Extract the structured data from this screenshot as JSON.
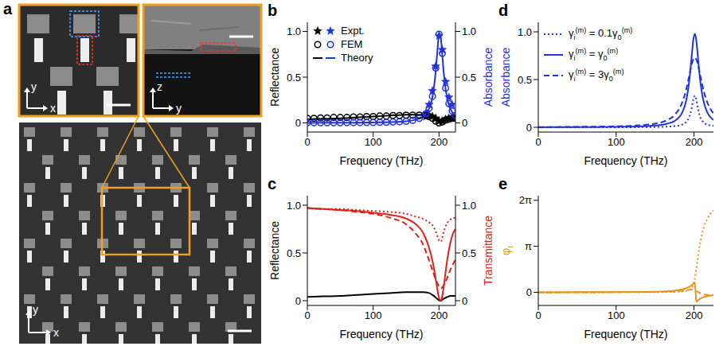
{
  "image_panel": {
    "panel": "a",
    "main": {
      "axes": [
        "x",
        "y"
      ]
    },
    "insets": [
      {
        "axes": [
          "x",
          "y"
        ]
      },
      {
        "axes": [
          "y",
          "z"
        ]
      }
    ]
  },
  "chart_data": [
    {
      "panel": "b",
      "type": "line",
      "x_label": "Frequency (THz)",
      "y_label": "Reflectance",
      "y2_label": "Absorbance",
      "xlim": [
        0,
        225
      ],
      "xticks": [
        0,
        100,
        200
      ],
      "ylim": [
        -0.1,
        1.1
      ],
      "yticks": [
        0,
        0.5,
        {
          "value": 1,
          "label": "1.0"
        }
      ],
      "y2lim": [
        -0.1,
        1.1
      ],
      "y2ticks": [
        0,
        0.5,
        {
          "value": 1,
          "label": "1.0"
        }
      ],
      "legend": "top-left",
      "series": [
        {
          "name": "Expt.",
          "type": "scatter",
          "marker": "star",
          "color": "#000000",
          "x": [
            180,
            185,
            190,
            195,
            200,
            205,
            210,
            215,
            220
          ],
          "values": [
            0.07,
            0.08,
            0.07,
            0.05,
            0.02,
            0.02,
            0.04,
            0.05,
            0.05
          ]
        },
        {
          "name": "Expt.",
          "type": "scatter",
          "marker": "star",
          "color": "#2233dd",
          "axis": "y2",
          "x": [
            180,
            185,
            190,
            195,
            200,
            205,
            210,
            215,
            220
          ],
          "values": [
            0.1,
            0.2,
            0.35,
            0.62,
            0.95,
            0.8,
            0.45,
            0.28,
            0.2
          ]
        },
        {
          "name": "FEM",
          "type": "scatter",
          "marker": "circle",
          "color": "#000000",
          "x": [
            0,
            10,
            20,
            30,
            40,
            50,
            60,
            70,
            80,
            90,
            100,
            110,
            120,
            130,
            140,
            150,
            160,
            170,
            180,
            185,
            190,
            195,
            200,
            205,
            210,
            215,
            220,
            225
          ],
          "values": [
            0.05,
            0.05,
            0.055,
            0.055,
            0.06,
            0.06,
            0.06,
            0.065,
            0.065,
            0.07,
            0.07,
            0.075,
            0.075,
            0.08,
            0.08,
            0.085,
            0.085,
            0.085,
            0.08,
            0.07,
            0.05,
            0.02,
            0,
            0.01,
            0.03,
            0.04,
            0.05,
            0.05
          ]
        },
        {
          "name": "FEM",
          "type": "scatter",
          "marker": "circle",
          "color": "#2233dd",
          "axis": "y2",
          "x": [
            0,
            10,
            20,
            30,
            40,
            50,
            60,
            70,
            80,
            90,
            100,
            110,
            120,
            130,
            140,
            150,
            160,
            170,
            180,
            185,
            190,
            195,
            200,
            205,
            210,
            215,
            220,
            225
          ],
          "values": [
            0.002,
            0.002,
            0.002,
            0.002,
            0.002,
            0.002,
            0.003,
            0.003,
            0.003,
            0.004,
            0.005,
            0.006,
            0.007,
            0.01,
            0.013,
            0.018,
            0.028,
            0.05,
            0.1,
            0.16,
            0.29,
            0.6,
            0.97,
            0.76,
            0.38,
            0.21,
            0.13,
            0.08
          ]
        },
        {
          "name": "Theory",
          "type": "line",
          "line_style": "solid",
          "color": "#000000",
          "x": [
            0,
            25,
            50,
            75,
            100,
            125,
            150,
            165,
            175,
            185,
            190,
            194,
            197,
            199,
            201,
            203,
            205,
            207,
            210,
            213,
            217,
            221,
            225
          ],
          "values": [
            0.04,
            0.045,
            0.05,
            0.06,
            0.07,
            0.08,
            0.09,
            0.09,
            0.09,
            0.08,
            0.06,
            0.04,
            0.02,
            0.01,
            0,
            0,
            0.01,
            0.02,
            0.03,
            0.04,
            0.05,
            0.05,
            0.05
          ]
        },
        {
          "name": "Theory",
          "type": "line",
          "line_style": "solid",
          "color": "#2233dd",
          "axis": "y2",
          "x": [
            0,
            25,
            50,
            75,
            100,
            125,
            150,
            165,
            175,
            185,
            190,
            194,
            197,
            199,
            201,
            203,
            205,
            207,
            210,
            213,
            217,
            221,
            225
          ],
          "values": [
            0.001,
            0.002,
            0.002,
            0.003,
            0.005,
            0.008,
            0.018,
            0.036,
            0.066,
            0.157,
            0.28,
            0.49,
            0.74,
            0.91,
            0.98,
            0.91,
            0.74,
            0.56,
            0.37,
            0.25,
            0.157,
            0.107,
            0.077
          ]
        }
      ]
    },
    {
      "panel": "c",
      "type": "line",
      "x_label": "Frequency (THz)",
      "y_label": "Reflectance",
      "y2_label": "Transmittance",
      "xlim": [
        0,
        225
      ],
      "xticks": [
        0,
        100,
        200
      ],
      "ylim": [
        -0.05,
        1.1
      ],
      "yticks": [
        0,
        0.5,
        {
          "value": 1,
          "label": "1.0"
        }
      ],
      "y2lim": [
        -0.05,
        1.1
      ],
      "y2ticks": [
        0,
        0.5,
        {
          "value": 1,
          "label": "1.0"
        }
      ],
      "x": [
        0,
        25,
        50,
        75,
        100,
        125,
        150,
        165,
        175,
        185,
        190,
        194,
        197,
        199,
        201,
        203,
        205,
        207,
        210,
        213,
        217,
        221,
        225
      ],
      "series": [
        {
          "color": "#000000",
          "line_style": "solid",
          "values": [
            0.04,
            0.045,
            0.05,
            0.06,
            0.07,
            0.08,
            0.09,
            0.09,
            0.09,
            0.08,
            0.06,
            0.04,
            0.02,
            0.01,
            0,
            0,
            0.01,
            0.02,
            0.03,
            0.04,
            0.05,
            0.05,
            0.05
          ]
        },
        {
          "color": "#e0201b",
          "axis": "y2",
          "line_style": "dotted",
          "values": [
            0.97,
            0.96,
            0.96,
            0.95,
            0.94,
            0.93,
            0.91,
            0.88,
            0.86,
            0.82,
            0.79,
            0.74,
            0.69,
            0.65,
            0.62,
            0.62,
            0.66,
            0.72,
            0.78,
            0.82,
            0.85,
            0.86,
            0.87
          ]
        },
        {
          "color": "#e0201b",
          "axis": "y2",
          "line_style": "solid",
          "values": [
            0.97,
            0.96,
            0.95,
            0.94,
            0.92,
            0.9,
            0.86,
            0.8,
            0.72,
            0.55,
            0.42,
            0.27,
            0.14,
            0.06,
            0.01,
            0,
            0.05,
            0.14,
            0.3,
            0.45,
            0.6,
            0.7,
            0.75
          ]
        },
        {
          "color": "#e0201b",
          "axis": "y2",
          "line_style": "dashed",
          "values": [
            0.97,
            0.96,
            0.95,
            0.93,
            0.91,
            0.87,
            0.8,
            0.7,
            0.6,
            0.42,
            0.32,
            0.24,
            0.19,
            0.16,
            0.14,
            0.13,
            0.14,
            0.16,
            0.2,
            0.25,
            0.32,
            0.38,
            0.43
          ]
        }
      ]
    },
    {
      "panel": "d",
      "type": "line",
      "x_label": "Frequency (THz)",
      "y_label": "Absorbance",
      "xlim": [
        0,
        225
      ],
      "xticks": [
        0,
        100,
        200
      ],
      "ylim": [
        -0.05,
        1.1
      ],
      "yticks": [
        0,
        0.5,
        {
          "value": 1,
          "label": "1.0"
        }
      ],
      "legend": "top-left",
      "x": [
        0,
        25,
        50,
        75,
        100,
        125,
        150,
        165,
        175,
        185,
        190,
        194,
        197,
        199,
        201,
        203,
        205,
        207,
        210,
        213,
        217,
        221,
        225
      ],
      "series": [
        {
          "name": "γi(m) = 0.1γ0(m)",
          "color": "#2233dd",
          "line_style": "dotted",
          "values": [
            0,
            0,
            0,
            0.001,
            0.001,
            0.001,
            0.003,
            0.006,
            0.012,
            0.029,
            0.056,
            0.112,
            0.201,
            0.29,
            0.33,
            0.29,
            0.201,
            0.126,
            0.078,
            0.046,
            0.029,
            0.019,
            0.014
          ]
        },
        {
          "name": "γi(m) = γ0(m)",
          "color": "#2233dd",
          "line_style": "solid",
          "values": [
            0.001,
            0.002,
            0.002,
            0.003,
            0.005,
            0.008,
            0.018,
            0.036,
            0.066,
            0.157,
            0.28,
            0.49,
            0.74,
            0.91,
            0.98,
            0.91,
            0.74,
            0.56,
            0.37,
            0.25,
            0.157,
            0.107,
            0.077
          ]
        },
        {
          "name": "γi(m) = 3γ0(m)",
          "color": "#2233dd",
          "line_style": "dashed",
          "values": [
            0.003,
            0.003,
            0.005,
            0.007,
            0.01,
            0.018,
            0.038,
            0.073,
            0.128,
            0.263,
            0.397,
            0.545,
            0.657,
            0.71,
            0.73,
            0.71,
            0.657,
            0.584,
            0.467,
            0.365,
            0.263,
            0.193,
            0.146
          ]
        }
      ]
    },
    {
      "panel": "e",
      "type": "line",
      "x_label": "Frequency (THz)",
      "y_label": "φt",
      "xlim": [
        0,
        225
      ],
      "xticks": [
        0,
        100,
        200
      ],
      "ylim": [
        -0.9,
        6.6
      ],
      "yticks": [
        0,
        {
          "value": 3.14159,
          "label": "π"
        },
        {
          "value": 6.28319,
          "label": "2π"
        }
      ],
      "x": [
        0,
        25,
        50,
        75,
        100,
        125,
        150,
        165,
        175,
        185,
        190,
        194,
        197,
        199,
        201,
        203,
        205,
        207,
        210,
        213,
        217,
        221,
        225
      ],
      "series": [
        {
          "color": "#e8941a",
          "line_style": "dotted",
          "values": [
            0,
            0,
            0,
            0,
            0.005,
            0.005,
            0.01,
            0.02,
            0.03,
            0.06,
            0.1,
            0.18,
            0.3,
            0.5,
            0.9,
            1.6,
            2.4,
            3.1,
            3.9,
            4.5,
            5.0,
            5.35,
            5.6
          ]
        },
        {
          "color": "#e8941a",
          "line_style": "solid",
          "values": [
            0,
            0,
            0.005,
            0.01,
            0.015,
            0.025,
            0.04,
            0.07,
            0.11,
            0.2,
            0.28,
            0.38,
            0.48,
            0.58,
            0.68,
            -0.65,
            -0.55,
            -0.47,
            -0.38,
            -0.32,
            -0.26,
            -0.22,
            -0.19
          ]
        },
        {
          "color": "#e8941a",
          "line_style": "dashed",
          "values": [
            0,
            0,
            0,
            0.005,
            0.01,
            0.015,
            0.02,
            0.04,
            0.07,
            0.12,
            0.15,
            0.17,
            0.17,
            0.15,
            0.12,
            0.07,
            0.02,
            -0.03,
            -0.1,
            -0.15,
            -0.18,
            -0.19,
            -0.19
          ]
        }
      ]
    }
  ]
}
